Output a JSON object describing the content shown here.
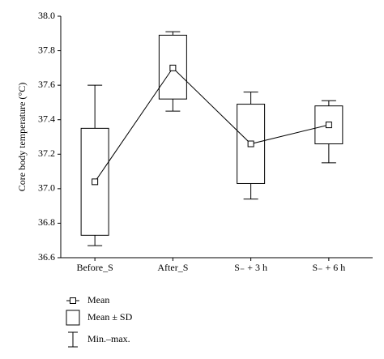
{
  "chart_data": {
    "type": "box",
    "y_label": "Core body temperature (°C)",
    "categories": [
      "Before_S",
      "After_S",
      "S₋ + 3 h",
      "S₋ + 6 h"
    ],
    "series": [
      {
        "name": "Mean",
        "values": [
          37.04,
          37.7,
          37.26,
          37.37
        ]
      },
      {
        "name": "Mean ± SD",
        "low": [
          36.73,
          37.52,
          37.03,
          37.26
        ],
        "high": [
          37.35,
          37.89,
          37.49,
          37.48
        ]
      },
      {
        "name": "Min.–max.",
        "low": [
          36.67,
          37.45,
          36.94,
          37.15
        ],
        "high": [
          37.6,
          37.91,
          37.56,
          37.51
        ]
      }
    ],
    "color": "#000000",
    "ylim": [
      36.6,
      38.0
    ],
    "yticks": [
      36.6,
      36.8,
      {
        "value": 37,
        "label": "37.0"
      },
      37.2,
      37.4,
      37.6,
      37.8,
      {
        "value": 38,
        "label": "38.0"
      }
    ]
  }
}
